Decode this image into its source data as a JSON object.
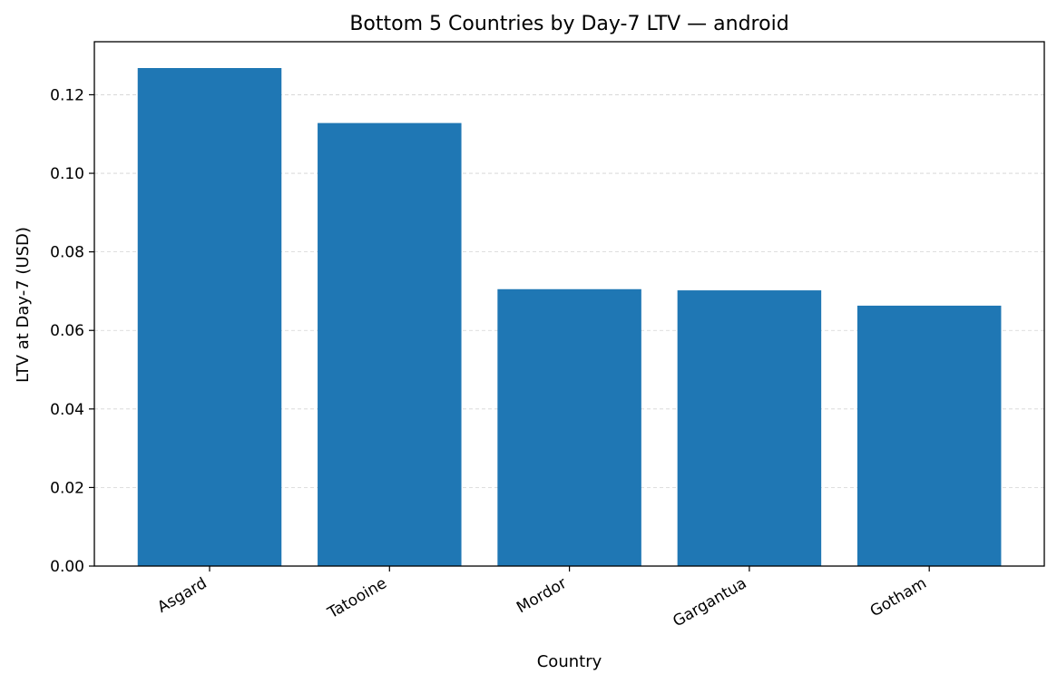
{
  "chart_data": {
    "type": "bar",
    "title": "Bottom 5 Countries by Day-7 LTV — android",
    "xlabel": "Country",
    "ylabel": "LTV at Day-7 (USD)",
    "categories": [
      "Asgard",
      "Tatooine",
      "Mordor",
      "Gargantua",
      "Gotham"
    ],
    "values": [
      0.1268,
      0.1128,
      0.0705,
      0.0702,
      0.0663
    ],
    "ylim": [
      0,
      0.1335
    ],
    "yticks": [
      0.0,
      0.02,
      0.04,
      0.06,
      0.08,
      0.1,
      0.12
    ],
    "ytick_labels": [
      "0.00",
      "0.02",
      "0.04",
      "0.06",
      "0.08",
      "0.10",
      "0.12"
    ],
    "grid": "y-dashed",
    "bar_color": "#1f77b4",
    "grid_color": "#d3d3d3"
  }
}
